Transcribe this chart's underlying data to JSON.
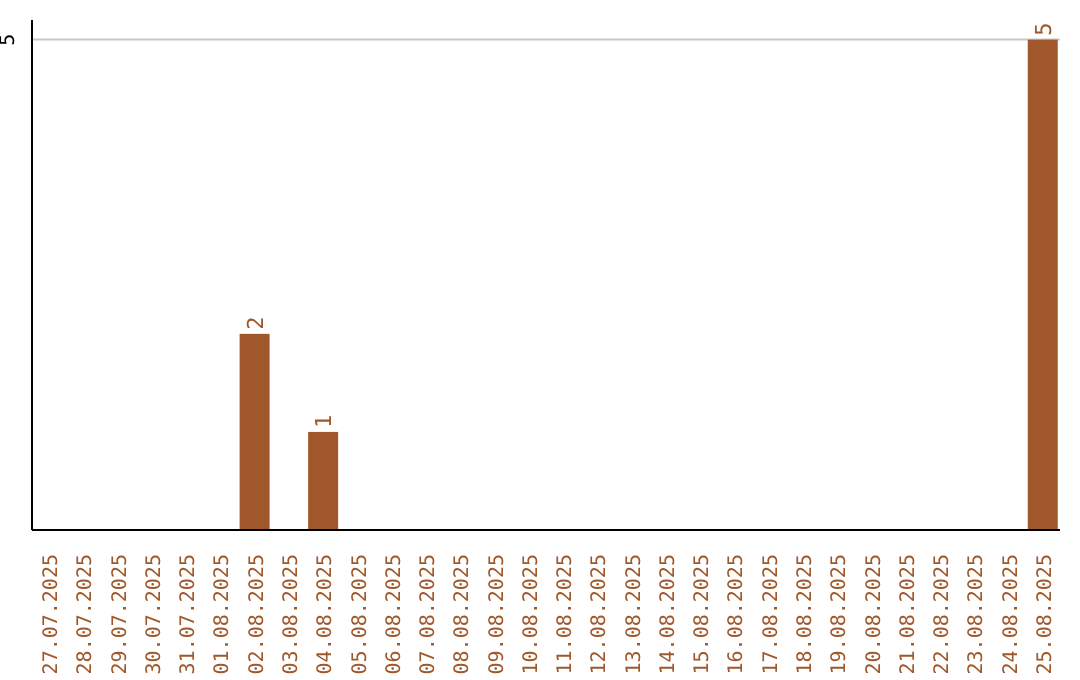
{
  "chart_data": {
    "type": "bar",
    "categories": [
      "27.07.2025",
      "28.07.2025",
      "29.07.2025",
      "30.07.2025",
      "31.07.2025",
      "01.08.2025",
      "02.08.2025",
      "03.08.2025",
      "04.08.2025",
      "05.08.2025",
      "06.08.2025",
      "07.08.2025",
      "08.08.2025",
      "09.08.2025",
      "10.08.2025",
      "11.08.2025",
      "12.08.2025",
      "13.08.2025",
      "14.08.2025",
      "15.08.2025",
      "16.08.2025",
      "17.08.2025",
      "18.08.2025",
      "19.08.2025",
      "20.08.2025",
      "21.08.2025",
      "22.08.2025",
      "23.08.2025",
      "24.08.2025",
      "25.08.2025"
    ],
    "values": [
      0,
      0,
      0,
      0,
      0,
      0,
      2,
      0,
      1,
      0,
      0,
      0,
      0,
      0,
      0,
      0,
      0,
      0,
      0,
      0,
      0,
      0,
      0,
      0,
      0,
      0,
      0,
      0,
      0,
      5
    ],
    "value_labels": [
      null,
      null,
      null,
      null,
      null,
      null,
      "2",
      null,
      "1",
      null,
      null,
      null,
      null,
      null,
      null,
      null,
      null,
      null,
      null,
      null,
      null,
      null,
      null,
      null,
      null,
      null,
      null,
      null,
      null,
      "5"
    ],
    "color": "#a0582a",
    "ylim": [
      0,
      5.2
    ],
    "yticks": [
      {
        "value": 0,
        "label": null
      },
      5
    ],
    "grid": "y"
  }
}
